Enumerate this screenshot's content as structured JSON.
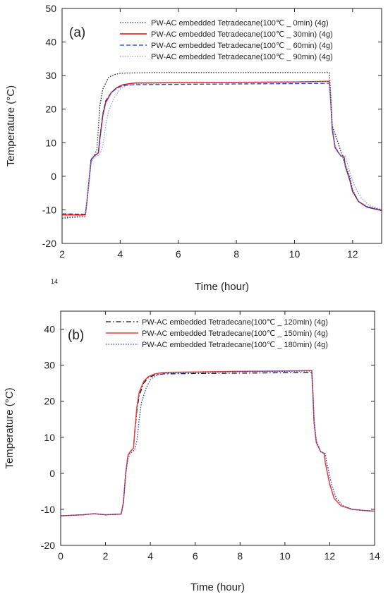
{
  "stray_label": "14",
  "chart_data": [
    {
      "type": "line",
      "panel_label": "(a)",
      "xlabel": "Time (hour)",
      "ylabel": "Temperature (°C)",
      "xlim": [
        2,
        13
      ],
      "ylim": [
        -20,
        50
      ],
      "xticks": [
        "2",
        "4",
        "6",
        "8",
        "10",
        "12"
      ],
      "yticks": [
        "-20",
        "-10",
        "0",
        "10",
        "20",
        "30",
        "40",
        "50"
      ],
      "legend_position": "top-right",
      "series": [
        {
          "name": "PW-AC embedded Tetradecane(100℃ _ 0min) (4g)",
          "color": "#222222",
          "dash": "dotted",
          "x": [
            2.0,
            2.8,
            2.85,
            3.0,
            3.1,
            3.2,
            3.3,
            3.4,
            3.6,
            3.8,
            4.0,
            4.5,
            5.0,
            8.0,
            11.2,
            11.25,
            11.3,
            11.5,
            11.65,
            11.7,
            11.9,
            12.0,
            12.2,
            12.5,
            12.8,
            13.0
          ],
          "y": [
            -12.5,
            -12.0,
            -8.0,
            5.0,
            6.0,
            8.0,
            21.0,
            26.0,
            29.5,
            30.3,
            30.7,
            30.8,
            30.9,
            30.9,
            30.9,
            24.0,
            15.0,
            10.0,
            6.0,
            4.5,
            0.0,
            -4.0,
            -7.5,
            -9.0,
            -9.6,
            -10.0
          ]
        },
        {
          "name": "PW-AC embedded Tetradecane(100℃ _ 30min) (4g)",
          "color": "#e01010",
          "dash": "solid",
          "x": [
            2.0,
            2.8,
            2.85,
            3.0,
            3.1,
            3.25,
            3.3,
            3.4,
            3.5,
            3.7,
            3.9,
            4.1,
            4.5,
            6.0,
            8.0,
            10.0,
            11.2,
            11.25,
            11.3,
            11.4,
            11.6,
            11.7,
            11.75,
            11.9,
            12.0,
            12.2,
            12.5,
            12.8,
            13.0
          ],
          "y": [
            -11.5,
            -11.5,
            -8.0,
            5.0,
            6.0,
            7.0,
            11.0,
            18.0,
            22.0,
            25.0,
            26.5,
            27.3,
            27.8,
            27.9,
            28.0,
            28.1,
            28.3,
            22.0,
            14.0,
            8.5,
            6.0,
            6.0,
            3.0,
            -1.0,
            -4.5,
            -7.5,
            -9.2,
            -9.8,
            -10.2
          ]
        },
        {
          "name": "PW-AC embedded Tetradecane(100℃ _ 60min) (4g)",
          "color": "#1f3fd6",
          "dash": "dashed",
          "x": [
            2.0,
            2.8,
            2.85,
            3.0,
            3.1,
            3.25,
            3.3,
            3.4,
            3.5,
            3.7,
            3.9,
            4.1,
            4.5,
            6.0,
            8.0,
            10.0,
            11.2,
            11.25,
            11.3,
            11.4,
            11.6,
            11.7,
            11.75,
            11.9,
            12.0,
            12.2,
            12.5,
            12.8,
            13.0
          ],
          "y": [
            -11.2,
            -11.3,
            -8.0,
            5.0,
            6.0,
            7.0,
            11.5,
            18.5,
            22.5,
            25.0,
            26.3,
            27.0,
            27.3,
            27.4,
            27.5,
            27.6,
            27.7,
            22.0,
            14.0,
            8.5,
            6.0,
            6.0,
            3.0,
            -1.0,
            -4.5,
            -7.5,
            -9.2,
            -9.8,
            -10.2
          ]
        },
        {
          "name": "PW-AC embedded Tetradecane(100℃ _ 90min) (4g)",
          "color": "#8a9ad8",
          "dash": "dotted",
          "x": [
            2.0,
            2.8,
            2.85,
            3.0,
            3.1,
            3.3,
            3.4,
            3.5,
            3.6,
            3.8,
            4.0,
            4.2,
            4.6,
            6.0,
            8.0,
            10.0,
            11.2,
            11.25,
            11.3,
            11.4,
            11.6,
            11.75,
            11.8,
            11.95,
            12.1,
            12.3,
            12.6,
            12.9,
            13.0
          ],
          "y": [
            -12.0,
            -11.8,
            -8.0,
            4.0,
            5.5,
            6.5,
            9.0,
            15.0,
            19.5,
            23.5,
            26.0,
            27.0,
            27.6,
            27.8,
            27.9,
            28.0,
            28.2,
            22.0,
            15.0,
            9.0,
            6.0,
            6.0,
            4.5,
            0.0,
            -3.5,
            -6.5,
            -8.8,
            -9.6,
            -9.9
          ]
        }
      ]
    },
    {
      "type": "line",
      "panel_label": "(b)",
      "xlabel": "Time (hour)",
      "ylabel": "Temperature (°C)",
      "xlim": [
        0,
        14
      ],
      "ylim": [
        -20,
        45
      ],
      "xticks": [
        "0",
        "2",
        "4",
        "6",
        "8",
        "10",
        "12",
        "14"
      ],
      "yticks": [
        "-20",
        "-10",
        "0",
        "10",
        "20",
        "30",
        "40"
      ],
      "legend_position": "top-right",
      "series": [
        {
          "name": "PW-AC embedded Tetradecane(100℃ _ 120min) (4g)",
          "color": "#111111",
          "dash": "dashdot",
          "x": [
            0.0,
            1.0,
            1.5,
            2.0,
            2.7,
            2.8,
            2.9,
            3.0,
            3.1,
            3.25,
            3.3,
            3.4,
            3.5,
            3.7,
            3.9,
            4.2,
            4.6,
            6.0,
            8.0,
            10.0,
            11.2,
            11.25,
            11.3,
            11.4,
            11.6,
            11.75,
            11.8,
            12.0,
            12.2,
            12.5,
            13.0,
            13.5,
            14.0
          ],
          "y": [
            -11.8,
            -11.5,
            -11.2,
            -11.5,
            -11.3,
            -8.0,
            0.0,
            5.0,
            6.0,
            7.0,
            11.0,
            17.5,
            21.5,
            25.0,
            26.5,
            27.3,
            27.6,
            27.7,
            27.8,
            27.9,
            28.0,
            22.0,
            14.0,
            8.5,
            6.0,
            5.5,
            3.0,
            -3.0,
            -7.0,
            -9.0,
            -10.0,
            -10.3,
            -10.5
          ]
        },
        {
          "name": "PW-AC embedded Tetradecane(100℃ _ 150min) (4g)",
          "color": "#e84040",
          "dash": "solid",
          "x": [
            0.0,
            1.0,
            1.5,
            2.0,
            2.7,
            2.8,
            2.9,
            3.0,
            3.1,
            3.25,
            3.3,
            3.4,
            3.5,
            3.7,
            3.9,
            4.2,
            4.6,
            6.0,
            8.0,
            10.0,
            11.2,
            11.25,
            11.3,
            11.4,
            11.6,
            11.75,
            11.8,
            12.0,
            12.2,
            12.5,
            13.0,
            13.5,
            14.0
          ],
          "y": [
            -11.8,
            -11.5,
            -11.2,
            -11.5,
            -11.3,
            -8.0,
            0.0,
            5.0,
            6.0,
            7.0,
            11.5,
            18.5,
            22.5,
            25.5,
            26.8,
            27.6,
            28.0,
            28.1,
            28.3,
            28.4,
            28.5,
            22.0,
            14.0,
            8.5,
            6.0,
            5.5,
            3.0,
            -3.0,
            -7.0,
            -9.0,
            -10.0,
            -10.3,
            -10.5
          ]
        },
        {
          "name": "PW-AC embedded Tetradecane(100℃ _ 180min) (4g)",
          "color": "#1a3fd0",
          "dash": "dotted",
          "x": [
            0.0,
            1.0,
            1.5,
            2.0,
            2.7,
            2.8,
            2.9,
            3.0,
            3.1,
            3.3,
            3.4,
            3.5,
            3.6,
            3.8,
            4.0,
            4.3,
            4.7,
            6.0,
            8.0,
            10.0,
            11.2,
            11.25,
            11.3,
            11.4,
            11.6,
            11.8,
            11.85,
            12.1,
            12.3,
            12.6,
            13.0,
            13.5,
            14.0
          ],
          "y": [
            -11.8,
            -11.5,
            -11.2,
            -11.5,
            -11.3,
            -8.0,
            0.0,
            4.0,
            5.5,
            6.5,
            9.0,
            15.0,
            19.5,
            23.5,
            26.0,
            27.3,
            27.8,
            28.0,
            28.2,
            28.3,
            28.4,
            22.0,
            15.0,
            9.0,
            6.0,
            5.5,
            3.5,
            -3.5,
            -7.0,
            -9.0,
            -10.0,
            -10.3,
            -10.5
          ]
        }
      ]
    }
  ]
}
